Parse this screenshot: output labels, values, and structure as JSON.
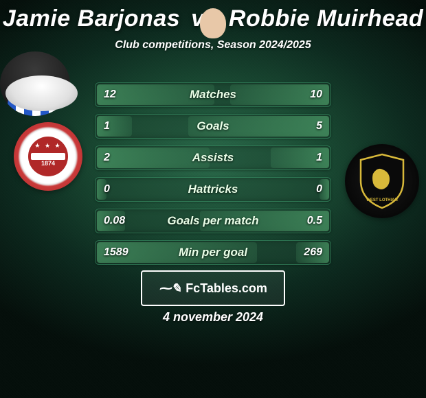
{
  "title": {
    "player1": "Jamie Barjonas",
    "vs": "vs",
    "player2": "Robbie Muirhead",
    "color": "#ffffff",
    "fontsize": 34
  },
  "subtitle": "Club competitions, Season 2024/2025",
  "background": {
    "center_color": "#2a6a4a",
    "mid_color": "#1a4a33",
    "outer_color": "#050f0b"
  },
  "left_avatar": {
    "type": "placeholder-ellipse",
    "bg": "#ffffff"
  },
  "right_avatar": {
    "type": "player-photo",
    "jersey_stripes": [
      "#2458c7",
      "#ffffff"
    ],
    "skin": "#e8c8a8"
  },
  "left_crest": {
    "outer_ring": "#b02828",
    "inner": "#b02828",
    "band": "#ffffff",
    "year": "1874"
  },
  "right_crest": {
    "bg": "#000000",
    "shield_fill": "#0a0a0a",
    "shield_stroke": "#d8b93a",
    "lion": "#d8b93a"
  },
  "stats": {
    "row_bg": "rgba(30,70,50,0.45)",
    "row_border": "rgba(100,255,180,0.25)",
    "fill_color": "rgba(90,180,120,0.55)",
    "label_color": "#eaffe8",
    "value_color": "#ffffff",
    "label_fontsize": 17,
    "value_fontsize": 16,
    "rows": [
      {
        "label": "Matches",
        "left": "12",
        "right": "10",
        "left_pct": 50,
        "right_pct": 42
      },
      {
        "label": "Goals",
        "left": "1",
        "right": "5",
        "left_pct": 15,
        "right_pct": 60
      },
      {
        "label": "Assists",
        "left": "2",
        "right": "1",
        "left_pct": 48,
        "right_pct": 25
      },
      {
        "label": "Hattricks",
        "left": "0",
        "right": "0",
        "left_pct": 4,
        "right_pct": 4
      },
      {
        "label": "Goals per match",
        "left": "0.08",
        "right": "0.5",
        "left_pct": 12,
        "right_pct": 55
      },
      {
        "label": "Min per goal",
        "left": "1589",
        "right": "269",
        "left_pct": 68,
        "right_pct": 14
      }
    ]
  },
  "watermark": {
    "icon": "📊",
    "text": "FcTables.com",
    "border_color": "#ffffff"
  },
  "date": "4 november 2024"
}
